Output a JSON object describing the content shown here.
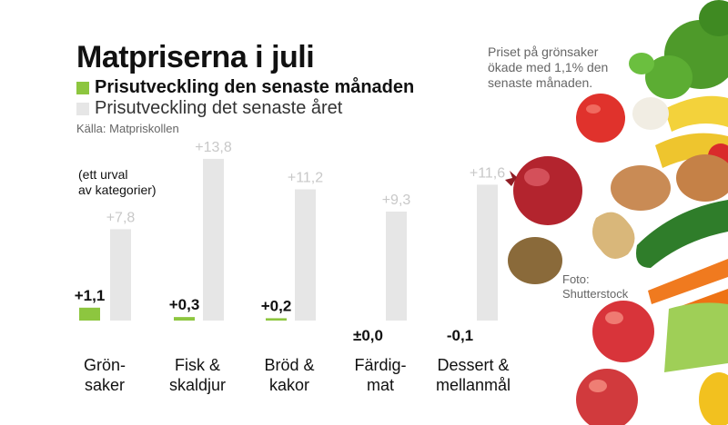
{
  "header": {
    "title": "Matpriserna i juli",
    "legend_month": "Prisutveckling den senaste månaden",
    "legend_year": "Prisutveckling det senaste året",
    "source": "Källa: Matpriskollen"
  },
  "subset_note": {
    "line1": "(ett urval",
    "line2": "av kategorier)"
  },
  "side_note": "Priset på grönsaker ökade med 1,1% den senaste månaden.",
  "photo_credit": {
    "line1": "Foto:",
    "line2": "Shutterstock"
  },
  "colors": {
    "month": "#8dc63f",
    "year": "#e6e6e6",
    "text": "#111111",
    "muted": "#c8c8c8"
  },
  "chart_data": {
    "type": "bar",
    "title": "Matpriserna i juli",
    "unit": "%",
    "categories": [
      {
        "line1": "Grön-",
        "line2": "saker"
      },
      {
        "line1": "Fisk &",
        "line2": "skaldjur"
      },
      {
        "line1": "Bröd &",
        "line2": "kakor"
      },
      {
        "line1": "Färdig-",
        "line2": "mat"
      },
      {
        "line1": "Dessert &",
        "line2": "mellanmål"
      }
    ],
    "series": [
      {
        "name": "Prisutveckling den senaste månaden",
        "values": [
          1.1,
          0.3,
          0.2,
          0.0,
          -0.1
        ],
        "labels": [
          "+1,1",
          "+0,3",
          "+0,2",
          "±0,0",
          "-0,1"
        ]
      },
      {
        "name": "Prisutveckling det senaste året",
        "values": [
          7.8,
          13.8,
          11.2,
          9.3,
          11.6
        ],
        "labels": [
          "+7,8",
          "+13,8",
          "+11,2",
          "+9,3",
          "+11,6"
        ]
      }
    ],
    "ylim": [
      0,
      14
    ],
    "grid": false,
    "legend": "top-left"
  }
}
